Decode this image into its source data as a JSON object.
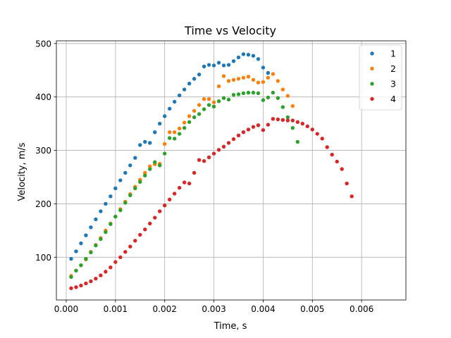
{
  "chart_data": {
    "type": "scatter",
    "title": "Time vs Velocity",
    "xlabel": "Time, s",
    "ylabel": "Velocity, m/s",
    "xlim": [
      -0.0002,
      0.0069
    ],
    "ylim": [
      20,
      505
    ],
    "xticks": [
      0.0,
      0.001,
      0.002,
      0.003,
      0.004,
      0.005,
      0.006
    ],
    "xtick_labels": [
      "0.000",
      "0.001",
      "0.002",
      "0.003",
      "0.004",
      "0.005",
      "0.006"
    ],
    "yticks": [
      100,
      200,
      300,
      400,
      500
    ],
    "ytick_labels": [
      "100",
      "200",
      "300",
      "400",
      "500"
    ],
    "grid": true,
    "legend_position": "top-right",
    "series": [
      {
        "name": "1",
        "color": "#1f77b4",
        "points": [
          [
            0.0001,
            97
          ],
          [
            0.0002,
            111
          ],
          [
            0.0003,
            126
          ],
          [
            0.0004,
            141
          ],
          [
            0.0005,
            156
          ],
          [
            0.0006,
            171
          ],
          [
            0.0007,
            186
          ],
          [
            0.0008,
            200
          ],
          [
            0.0009,
            214
          ],
          [
            0.001,
            229
          ],
          [
            0.0011,
            244
          ],
          [
            0.0012,
            258
          ],
          [
            0.0013,
            272
          ],
          [
            0.0014,
            286
          ],
          [
            0.0015,
            310
          ],
          [
            0.0016,
            316
          ],
          [
            0.0017,
            314
          ],
          [
            0.0018,
            334
          ],
          [
            0.0019,
            350
          ],
          [
            0.002,
            364
          ],
          [
            0.0021,
            378
          ],
          [
            0.0022,
            391
          ],
          [
            0.0023,
            403
          ],
          [
            0.0024,
            414
          ],
          [
            0.0025,
            425
          ],
          [
            0.0026,
            434
          ],
          [
            0.0027,
            442
          ],
          [
            0.0028,
            457
          ],
          [
            0.0029,
            460
          ],
          [
            0.003,
            459
          ],
          [
            0.0031,
            464
          ],
          [
            0.0032,
            459
          ],
          [
            0.0033,
            460
          ],
          [
            0.0034,
            467
          ],
          [
            0.0035,
            474
          ],
          [
            0.0036,
            480
          ],
          [
            0.0037,
            479
          ],
          [
            0.0038,
            477
          ],
          [
            0.0039,
            471
          ],
          [
            0.004,
            455
          ],
          [
            0.0041,
            445
          ]
        ]
      },
      {
        "name": "2",
        "color": "#ff7f0e",
        "points": [
          [
            0.0001,
            65
          ],
          [
            0.0002,
            75
          ],
          [
            0.0003,
            85
          ],
          [
            0.0004,
            96
          ],
          [
            0.0005,
            110
          ],
          [
            0.0006,
            123
          ],
          [
            0.0007,
            136
          ],
          [
            0.0008,
            150
          ],
          [
            0.0009,
            163
          ],
          [
            0.001,
            176
          ],
          [
            0.0011,
            190
          ],
          [
            0.0012,
            204
          ],
          [
            0.0013,
            218
          ],
          [
            0.0014,
            232
          ],
          [
            0.0015,
            245
          ],
          [
            0.0016,
            258
          ],
          [
            0.0017,
            270
          ],
          [
            0.0018,
            274
          ],
          [
            0.0019,
            275
          ],
          [
            0.002,
            312
          ],
          [
            0.0021,
            334
          ],
          [
            0.0022,
            334
          ],
          [
            0.0023,
            341
          ],
          [
            0.0024,
            352
          ],
          [
            0.0025,
            364
          ],
          [
            0.0026,
            374
          ],
          [
            0.0027,
            385
          ],
          [
            0.0028,
            396
          ],
          [
            0.0029,
            396
          ],
          [
            0.003,
            390
          ],
          [
            0.0031,
            420
          ],
          [
            0.0032,
            439
          ],
          [
            0.0033,
            430
          ],
          [
            0.0034,
            432
          ],
          [
            0.0035,
            434
          ],
          [
            0.0036,
            436
          ],
          [
            0.0037,
            438
          ],
          [
            0.0038,
            432
          ],
          [
            0.0039,
            427
          ],
          [
            0.004,
            428
          ],
          [
            0.0041,
            436
          ],
          [
            0.0042,
            443
          ],
          [
            0.0043,
            430
          ],
          [
            0.0044,
            414
          ],
          [
            0.0045,
            402
          ],
          [
            0.0046,
            383
          ]
        ]
      },
      {
        "name": "3",
        "color": "#2ca02c",
        "points": [
          [
            0.0001,
            63
          ],
          [
            0.0002,
            75
          ],
          [
            0.0003,
            85
          ],
          [
            0.0004,
            97
          ],
          [
            0.0005,
            109
          ],
          [
            0.0006,
            122
          ],
          [
            0.0007,
            134
          ],
          [
            0.0008,
            147
          ],
          [
            0.0009,
            162
          ],
          [
            0.001,
            176
          ],
          [
            0.0011,
            188
          ],
          [
            0.0012,
            202
          ],
          [
            0.0013,
            216
          ],
          [
            0.0014,
            229
          ],
          [
            0.0015,
            241
          ],
          [
            0.0016,
            253
          ],
          [
            0.0017,
            265
          ],
          [
            0.0018,
            278
          ],
          [
            0.0019,
            272
          ],
          [
            0.002,
            294
          ],
          [
            0.0021,
            323
          ],
          [
            0.0022,
            322
          ],
          [
            0.0023,
            331
          ],
          [
            0.0024,
            342
          ],
          [
            0.0025,
            353
          ],
          [
            0.0026,
            362
          ],
          [
            0.0027,
            368
          ],
          [
            0.0028,
            377
          ],
          [
            0.0029,
            385
          ],
          [
            0.003,
            382
          ],
          [
            0.0031,
            392
          ],
          [
            0.0032,
            398
          ],
          [
            0.0033,
            395
          ],
          [
            0.0034,
            404
          ],
          [
            0.0035,
            405
          ],
          [
            0.0036,
            407
          ],
          [
            0.0037,
            408
          ],
          [
            0.0038,
            408
          ],
          [
            0.0039,
            407
          ],
          [
            0.004,
            394
          ],
          [
            0.0041,
            399
          ],
          [
            0.0042,
            408
          ],
          [
            0.0043,
            398
          ],
          [
            0.0044,
            381
          ],
          [
            0.0045,
            362
          ],
          [
            0.0046,
            342
          ],
          [
            0.0047,
            316
          ]
        ]
      },
      {
        "name": "4",
        "color": "#d62728",
        "points": [
          [
            0.0001,
            42
          ],
          [
            0.0002,
            44
          ],
          [
            0.0003,
            47
          ],
          [
            0.0004,
            51
          ],
          [
            0.0005,
            55
          ],
          [
            0.0006,
            60
          ],
          [
            0.0007,
            66
          ],
          [
            0.0008,
            73
          ],
          [
            0.0009,
            81
          ],
          [
            0.001,
            91
          ],
          [
            0.0011,
            100
          ],
          [
            0.0012,
            110
          ],
          [
            0.0013,
            120
          ],
          [
            0.0014,
            131
          ],
          [
            0.0015,
            142
          ],
          [
            0.0016,
            152
          ],
          [
            0.0017,
            163
          ],
          [
            0.0018,
            174
          ],
          [
            0.0019,
            186
          ],
          [
            0.002,
            197
          ],
          [
            0.0021,
            208
          ],
          [
            0.0022,
            219
          ],
          [
            0.0023,
            230
          ],
          [
            0.0024,
            240
          ],
          [
            0.0025,
            238
          ],
          [
            0.0026,
            258
          ],
          [
            0.0027,
            282
          ],
          [
            0.0028,
            280
          ],
          [
            0.0029,
            287
          ],
          [
            0.003,
            294
          ],
          [
            0.0031,
            301
          ],
          [
            0.0032,
            307
          ],
          [
            0.0033,
            314
          ],
          [
            0.0034,
            321
          ],
          [
            0.0035,
            328
          ],
          [
            0.0036,
            334
          ],
          [
            0.0037,
            339
          ],
          [
            0.0038,
            344
          ],
          [
            0.0039,
            347
          ],
          [
            0.004,
            338
          ],
          [
            0.0041,
            348
          ],
          [
            0.0042,
            359
          ],
          [
            0.0043,
            358
          ],
          [
            0.0044,
            357
          ],
          [
            0.0045,
            356
          ],
          [
            0.0046,
            356
          ],
          [
            0.0047,
            353
          ],
          [
            0.0048,
            350
          ],
          [
            0.0049,
            345
          ],
          [
            0.005,
            339
          ],
          [
            0.0051,
            331
          ],
          [
            0.0052,
            322
          ],
          [
            0.0053,
            306
          ],
          [
            0.0054,
            292
          ],
          [
            0.0055,
            279
          ],
          [
            0.0056,
            265
          ],
          [
            0.0057,
            238
          ],
          [
            0.0058,
            214
          ]
        ]
      }
    ]
  }
}
